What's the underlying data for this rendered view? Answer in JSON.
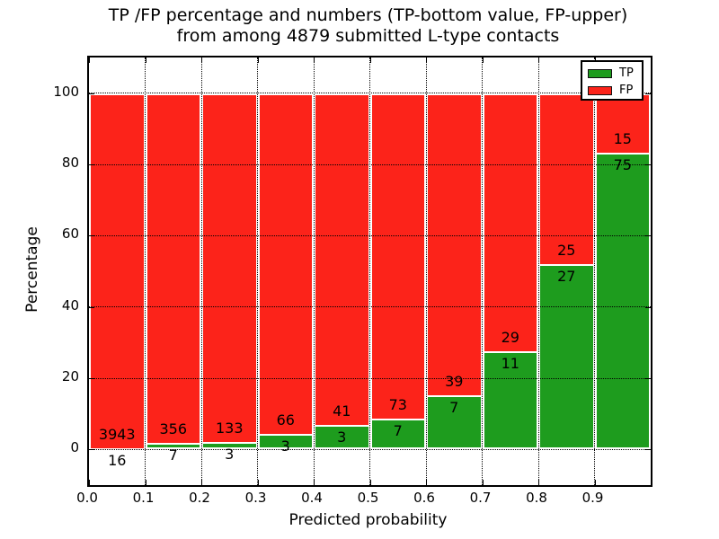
{
  "chart_data": {
    "type": "bar",
    "stacked": true,
    "title_line1": "TP /FP percentage and numbers (TP-bottom value, FP-upper)",
    "title_line2": "from among 4879 submitted L-type contacts",
    "xlabel": "Predicted probability",
    "ylabel": "Percentage",
    "total_contacts": 4879,
    "bin_width": 0.1,
    "x_ticks": [
      "0.0",
      "0.1",
      "0.2",
      "0.3",
      "0.4",
      "0.5",
      "0.6",
      "0.7",
      "0.8",
      "0.9"
    ],
    "y_ticks": [
      0,
      20,
      40,
      60,
      80,
      100
    ],
    "xlim": [
      0.0,
      1.0
    ],
    "ylim": [
      -10,
      110
    ],
    "grid": "dotted",
    "bar_edge_color": "#ffffff",
    "series": [
      {
        "name": "TP",
        "color": "#1e9c1e",
        "counts": [
          16,
          7,
          3,
          3,
          3,
          7,
          7,
          11,
          27,
          75
        ]
      },
      {
        "name": "FP",
        "color": "#fc231a",
        "counts": [
          3943,
          356,
          133,
          66,
          41,
          73,
          39,
          29,
          25,
          15
        ]
      }
    ],
    "tp_percent_of_bin": [
      0.4,
      1.9,
      2.2,
      4.3,
      6.8,
      8.8,
      15.2,
      27.5,
      51.9,
      83.3
    ],
    "bar_total_percent": 100,
    "legend": {
      "position": "upper-right",
      "labels": [
        "TP",
        "FP"
      ]
    }
  }
}
